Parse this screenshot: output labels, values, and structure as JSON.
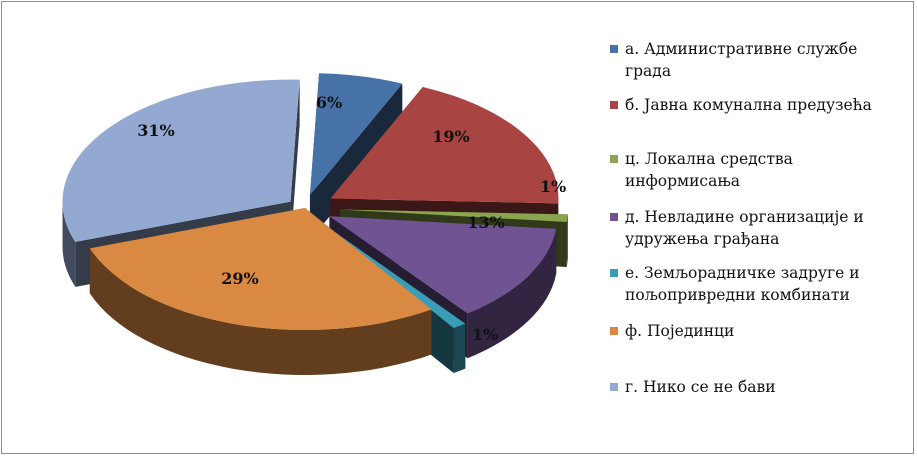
{
  "chart_data": {
    "type": "pie",
    "variant": "3d-exploded",
    "legend_position": "right",
    "slices": [
      {
        "label": "а.    Административне службе града",
        "value": 6,
        "display": "6%",
        "color": "#4672A8"
      },
      {
        "label": "б.    Јавна комунална предузећа",
        "value": 19,
        "display": "19%",
        "color": "#A84543"
      },
      {
        "label": "ц.    Локална средства информисања",
        "value": 1,
        "display": "1%",
        "color": "#8AA54D"
      },
      {
        "label": "д.    Невладине организације и удружења грађана",
        "value": 13,
        "display": "13%",
        "color": "#6F5393"
      },
      {
        "label": "е. Земљорадничке задруге и пољопривредни комбинати",
        "value": 1,
        "display": "1%",
        "color": "#3B9CB7"
      },
      {
        "label": "ф.     Појединци",
        "value": 29,
        "display": "29%",
        "color": "#D98942"
      },
      {
        "label": "г.     Нико се не бави",
        "value": 31,
        "display": "31%",
        "color": "#94A9D1"
      }
    ]
  }
}
